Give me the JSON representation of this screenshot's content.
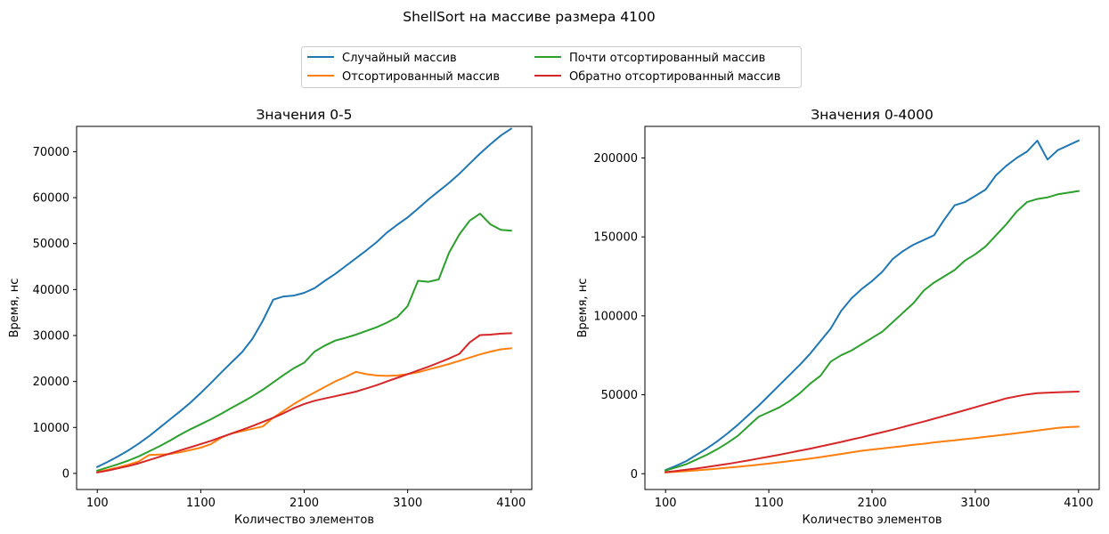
{
  "figure": {
    "suptitle": "ShellSort на массиве размера 4100",
    "legend_location": "top-center",
    "colors": {
      "Случайный массив": "#1f77b4",
      "Отсортированный массив": "#ff7f0e",
      "Почти отсортированный массив": "#2ca02c",
      "Обратно отсортированный массив": "#d62728"
    }
  },
  "chart_data": [
    {
      "type": "line",
      "title": "Значения 0-5",
      "xlabel": "Количество элементов",
      "ylabel": "Время, нс",
      "xlim": [
        -100,
        4300
      ],
      "ylim": [
        -3500,
        75500
      ],
      "xticks": [
        100,
        1100,
        2100,
        3100,
        4100
      ],
      "yticks": [
        0,
        10000,
        20000,
        30000,
        40000,
        50000,
        60000,
        70000
      ],
      "grid": false,
      "x": [
        100,
        200,
        300,
        400,
        500,
        600,
        700,
        800,
        900,
        1000,
        1100,
        1200,
        1300,
        1400,
        1500,
        1600,
        1700,
        1800,
        1900,
        2000,
        2100,
        2200,
        2300,
        2400,
        2500,
        2600,
        2700,
        2800,
        2900,
        3000,
        3100,
        3200,
        3300,
        3400,
        3500,
        3600,
        3700,
        3800,
        3900,
        4000,
        4100
      ],
      "series": [
        {
          "name": "Случайный массив",
          "values": [
            1400,
            2500,
            3700,
            5000,
            6500,
            8100,
            9900,
            11700,
            13500,
            15400,
            17500,
            19700,
            22000,
            24200,
            26400,
            29300,
            33200,
            37800,
            38500,
            38700,
            39300,
            40300,
            41900,
            43400,
            45100,
            46800,
            48500,
            50300,
            52400,
            54100,
            55700,
            57600,
            59600,
            61400,
            63200,
            65200,
            67400,
            69600,
            71600,
            73500,
            75000
          ]
        },
        {
          "name": "Отсортированный массив",
          "values": [
            300,
            800,
            1300,
            1900,
            2600,
            4000,
            4100,
            4200,
            4600,
            5100,
            5600,
            6400,
            7800,
            8700,
            9200,
            9700,
            10200,
            12100,
            13600,
            15100,
            16400,
            17600,
            18800,
            20000,
            21000,
            22100,
            21600,
            21300,
            21200,
            21300,
            21600,
            22000,
            22600,
            23200,
            23800,
            24500,
            25200,
            25900,
            26500,
            27000,
            27200
          ]
        },
        {
          "name": "Почти отсортированный массив",
          "values": [
            600,
            1300,
            2000,
            2800,
            3700,
            4800,
            5900,
            7100,
            8400,
            9600,
            10700,
            11800,
            13000,
            14300,
            15500,
            16800,
            18200,
            19800,
            21400,
            22900,
            24100,
            26500,
            27800,
            28900,
            29500,
            30200,
            31000,
            31800,
            32800,
            34000,
            36400,
            41900,
            41700,
            42200,
            48000,
            52000,
            55000,
            56500,
            54200,
            53000,
            52800
          ]
        },
        {
          "name": "Обратно отсортированный массив",
          "values": [
            200,
            600,
            1100,
            1600,
            2200,
            2900,
            3600,
            4300,
            5000,
            5700,
            6400,
            7100,
            7900,
            8700,
            9500,
            10300,
            11200,
            12100,
            13100,
            14200,
            15100,
            15800,
            16300,
            16800,
            17300,
            17800,
            18500,
            19200,
            20000,
            20800,
            21600,
            22400,
            23200,
            24100,
            25000,
            26000,
            28500,
            30100,
            30200,
            30400,
            30500
          ]
        }
      ]
    },
    {
      "type": "line",
      "title": "Значения 0-4000",
      "xlabel": "Количество элементов",
      "ylabel": "Время, нс",
      "xlim": [
        -100,
        4300
      ],
      "ylim": [
        -10000,
        220000
      ],
      "xticks": [
        100,
        1100,
        2100,
        3100,
        4100
      ],
      "yticks": [
        0,
        50000,
        100000,
        150000,
        200000
      ],
      "grid": false,
      "x": [
        100,
        200,
        300,
        400,
        500,
        600,
        700,
        800,
        900,
        1000,
        1100,
        1200,
        1300,
        1400,
        1500,
        1600,
        1700,
        1800,
        1900,
        2000,
        2100,
        2200,
        2300,
        2400,
        2500,
        2600,
        2700,
        2800,
        2900,
        3000,
        3100,
        3200,
        3300,
        3400,
        3500,
        3600,
        3700,
        3800,
        3900,
        4000,
        4100
      ],
      "series": [
        {
          "name": "Случайный массив",
          "values": [
            2300,
            5000,
            8000,
            12000,
            16000,
            20500,
            25500,
            31000,
            37000,
            43000,
            49500,
            56000,
            62500,
            69000,
            76000,
            84000,
            92000,
            103000,
            111000,
            117000,
            122000,
            128000,
            136000,
            141000,
            145000,
            148000,
            151000,
            161000,
            170000,
            172000,
            176000,
            180000,
            189000,
            195000,
            200000,
            204000,
            211000,
            199000,
            205000,
            208000,
            211000
          ]
        },
        {
          "name": "Отсортированный массив",
          "values": [
            800,
            1200,
            1600,
            2100,
            2600,
            3200,
            3800,
            4400,
            5000,
            5700,
            6400,
            7200,
            8000,
            8800,
            9600,
            10500,
            11500,
            12500,
            13500,
            14500,
            15300,
            16000,
            16800,
            17500,
            18300,
            19000,
            19800,
            20500,
            21200,
            21900,
            22600,
            23400,
            24100,
            24900,
            25700,
            26500,
            27400,
            28200,
            29000,
            29500,
            29800
          ]
        },
        {
          "name": "Почти отсортированный массив",
          "values": [
            2000,
            4000,
            6000,
            9000,
            12000,
            15500,
            19500,
            24000,
            30000,
            36000,
            39000,
            42000,
            46000,
            51000,
            57000,
            62000,
            71000,
            75000,
            78000,
            82000,
            86000,
            90000,
            96000,
            102000,
            108000,
            116000,
            121000,
            125000,
            129000,
            135000,
            139000,
            144000,
            151000,
            158000,
            166000,
            172000,
            174000,
            175000,
            177000,
            178000,
            179000
          ]
        },
        {
          "name": "Обратно отсортированный массив",
          "values": [
            1000,
            1700,
            2500,
            3300,
            4200,
            5200,
            6200,
            7300,
            8400,
            9600,
            10800,
            12000,
            13300,
            14600,
            15900,
            17300,
            18700,
            20100,
            21600,
            23100,
            24700,
            26300,
            27900,
            29600,
            31300,
            33000,
            34800,
            36600,
            38400,
            40200,
            42100,
            44000,
            45800,
            47700,
            49000,
            50200,
            51000,
            51300,
            51600,
            51800,
            52000
          ]
        }
      ]
    }
  ]
}
